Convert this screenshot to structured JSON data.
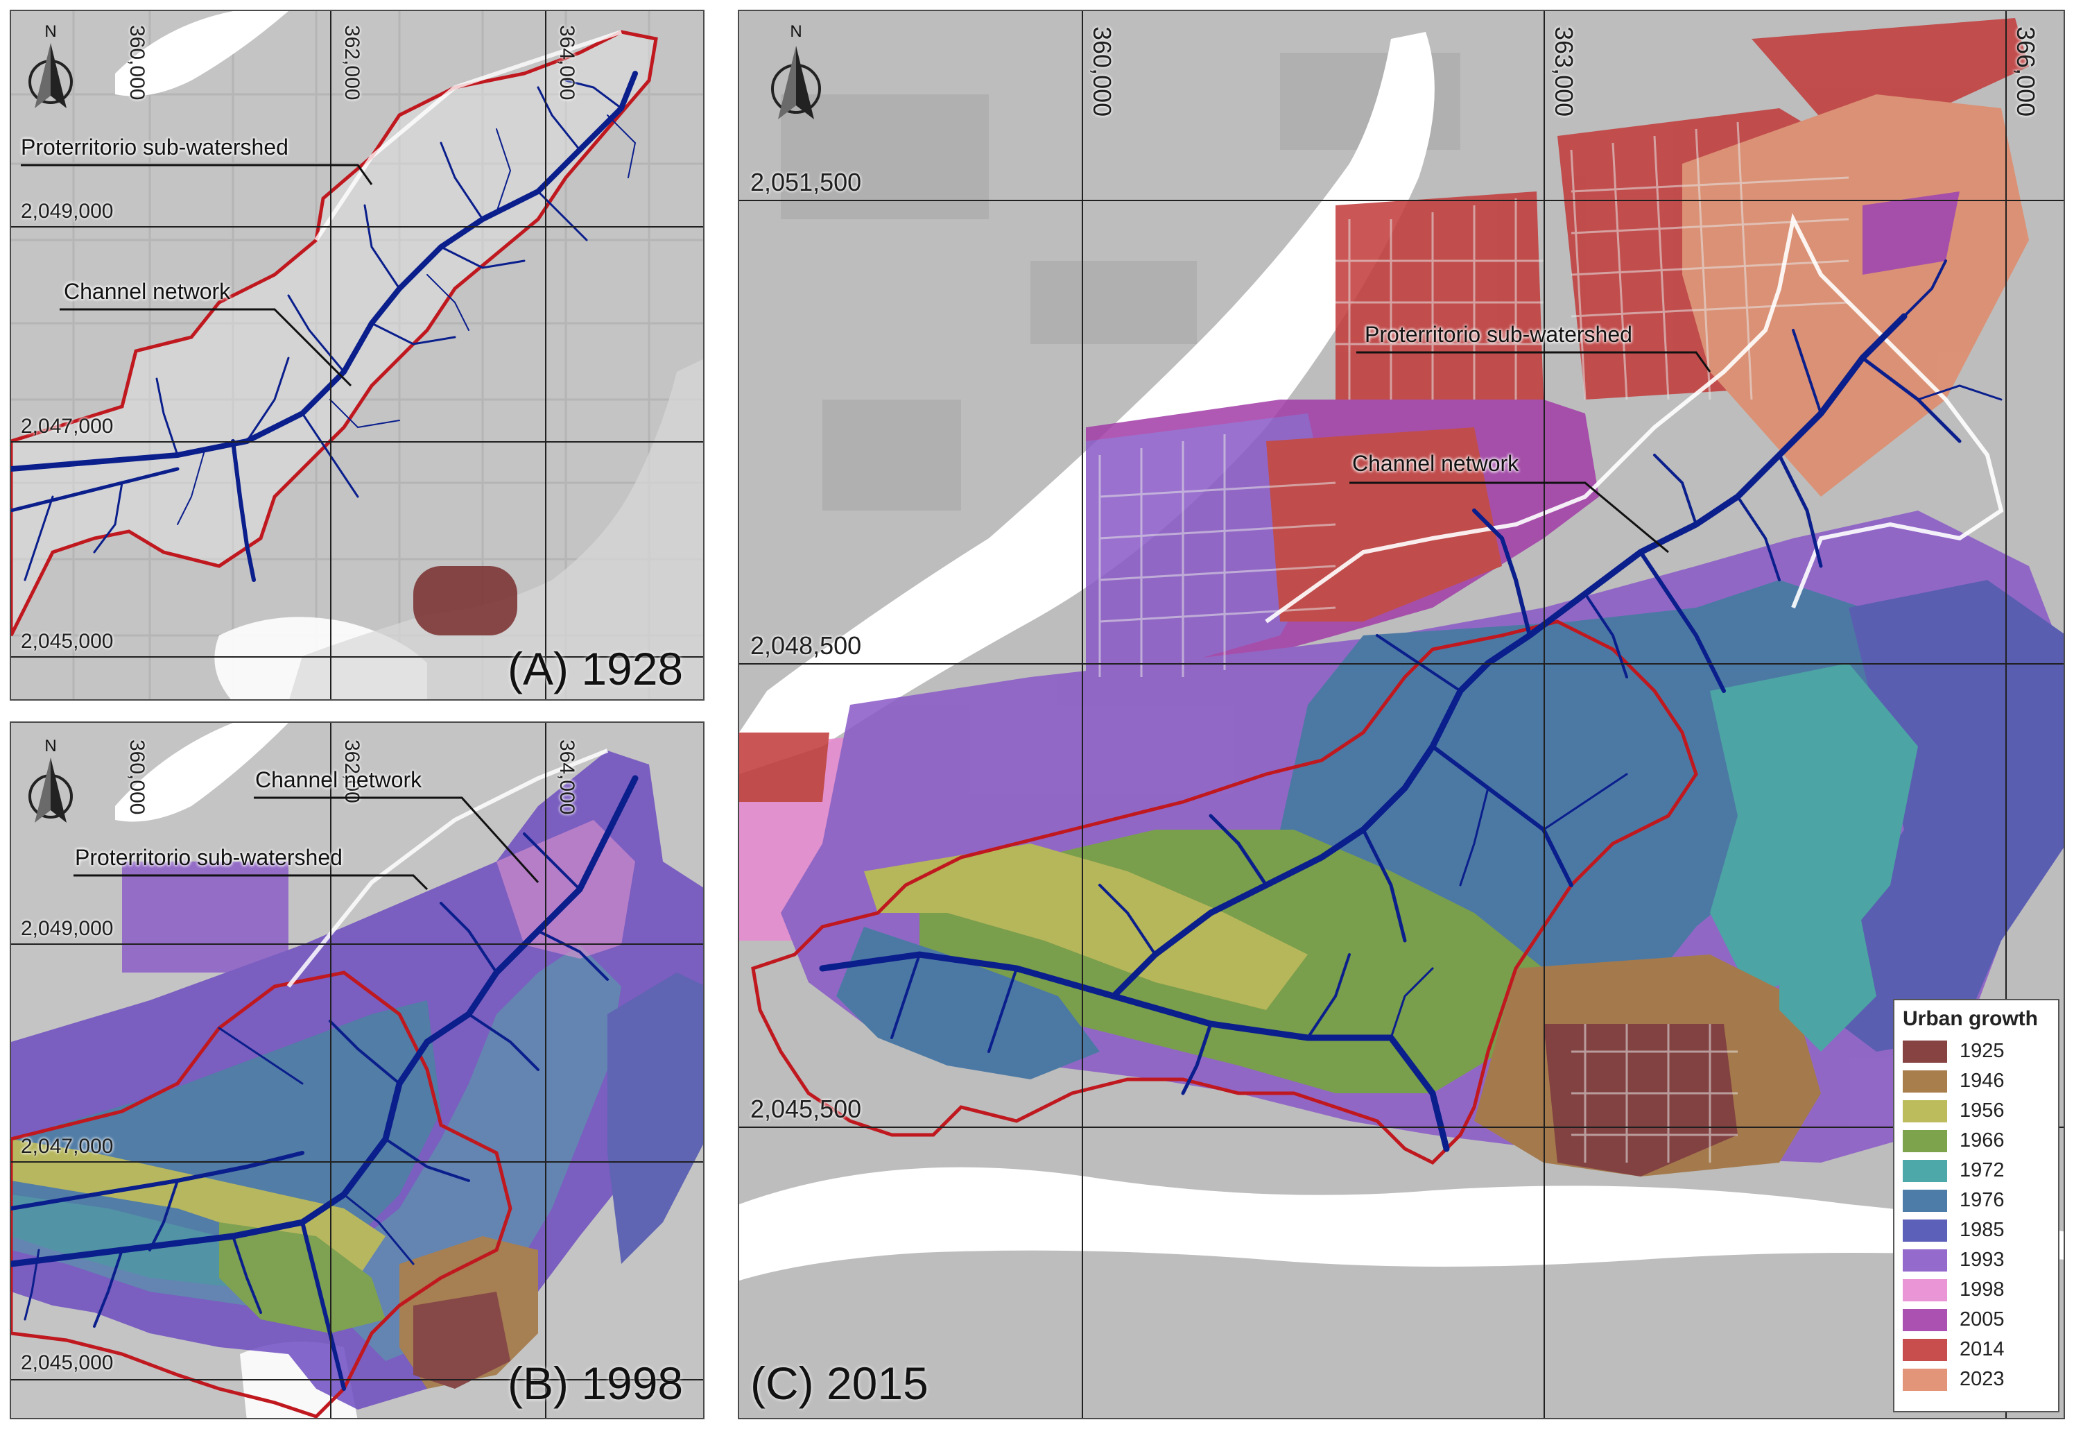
{
  "panels": {
    "a": {
      "label": "(A) 1928",
      "x_ticks": [
        "360,000",
        "362,000",
        "364,000"
      ],
      "y_ticks": [
        "2,049,000",
        "2,047,000",
        "2,045,000"
      ],
      "callouts": {
        "watershed": "Proterritorio sub-watershed",
        "channel": "Channel network"
      }
    },
    "b": {
      "label": "(B) 1998",
      "x_ticks": [
        "360,000",
        "362,00",
        "364,000"
      ],
      "y_ticks": [
        "2,049,000",
        "2,047,000",
        "2,045,000"
      ],
      "callouts": {
        "watershed": "Proterritorio sub-watershed",
        "channel": "Channel network"
      }
    },
    "c": {
      "label": "(C) 2015",
      "x_ticks": [
        "360,000",
        "363,000",
        "366,000"
      ],
      "y_ticks": [
        "2,051,500",
        "2,048,500",
        "2,045,500"
      ],
      "callouts": {
        "watershed": "Proterritorio sub-watershed",
        "channel": "Channel network"
      }
    }
  },
  "north_arrow": {
    "letter": "N",
    "icon": "north-arrow-icon"
  },
  "legend": {
    "title": "Urban growth",
    "items": [
      {
        "year": "1925",
        "color": "#7a2e2e"
      },
      {
        "year": "1946",
        "color": "#a0703a"
      },
      {
        "year": "1956",
        "color": "#b5b54a"
      },
      {
        "year": "1966",
        "color": "#6f9a3a"
      },
      {
        "year": "1972",
        "color": "#3aa0a0"
      },
      {
        "year": "1976",
        "color": "#3a6ea0"
      },
      {
        "year": "1985",
        "color": "#4a4fb0"
      },
      {
        "year": "1993",
        "color": "#8a5ac8"
      },
      {
        "year": "1998",
        "color": "#e88ad0"
      },
      {
        "year": "2005",
        "color": "#a23ea8"
      },
      {
        "year": "2014",
        "color": "#c23a3a"
      },
      {
        "year": "2023",
        "color": "#e08a6a"
      }
    ]
  },
  "colors": {
    "watershed_boundary": "#c0181f",
    "channel": "#0a1e8c",
    "background": "#c8c8c8",
    "water": "#ffffff"
  }
}
